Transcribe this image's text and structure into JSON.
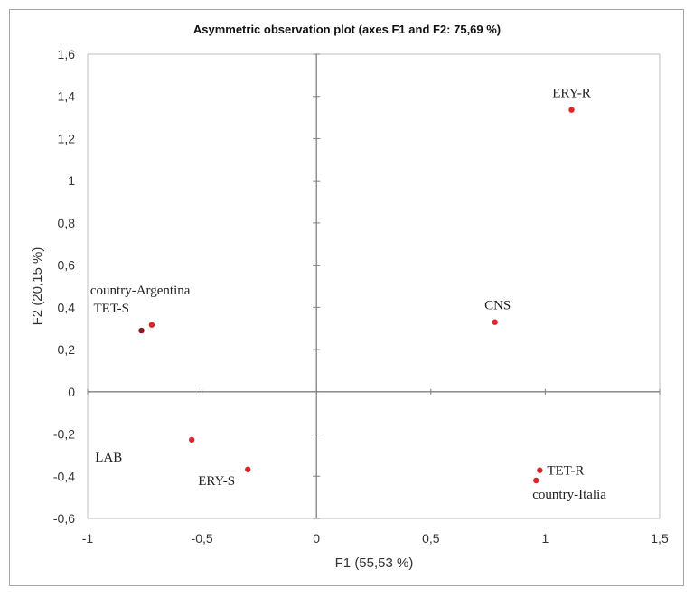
{
  "chart_data": {
    "type": "scatter",
    "title": "Asymmetric observation plot (axes F1 and F2: 75,69 %)",
    "xlabel": "F1 (55,53 %)",
    "ylabel": "F2 (20,15 %)",
    "xlim": [
      -1,
      1.5
    ],
    "ylim": [
      -0.6,
      1.6
    ],
    "xticks": [
      -1,
      -0.5,
      0,
      0.5,
      1,
      1.5
    ],
    "xtick_labels": [
      "-1",
      "-0,5",
      "0",
      "0,5",
      "1",
      "1,5"
    ],
    "yticks": [
      -0.6,
      -0.4,
      -0.2,
      0,
      0.2,
      0.4,
      0.6,
      0.8,
      1,
      1.2,
      1.4,
      1.6
    ],
    "ytick_labels": [
      "-0,6",
      "-0,4",
      "-0,2",
      "0",
      "0,2",
      "0,4",
      "0,6",
      "0,8",
      "1",
      "1,2",
      "1,4",
      "1,6"
    ],
    "grid": false,
    "points": [
      {
        "label": "ERY-R",
        "x": 1.115,
        "y": 1.336,
        "color": "#e0242c"
      },
      {
        "label": "CNS",
        "x": 0.78,
        "y": 0.33,
        "color": "#e0242c"
      },
      {
        "label": "TET-S",
        "x": -0.765,
        "y": 0.29,
        "color": "#8b1a1f"
      },
      {
        "label": "country-Argentina",
        "x": -0.72,
        "y": 0.317,
        "color": "#e0242c"
      },
      {
        "label": "LAB",
        "x": -0.545,
        "y": -0.227,
        "color": "#e0242c"
      },
      {
        "label": "ERY-S",
        "x": -0.3,
        "y": -0.368,
        "color": "#e0242c"
      },
      {
        "label": "TET-R",
        "x": 0.976,
        "y": -0.372,
        "color": "#e0242c"
      },
      {
        "label": "country-Italia",
        "x": 0.96,
        "y": -0.42,
        "color": "#e0242c"
      }
    ]
  }
}
